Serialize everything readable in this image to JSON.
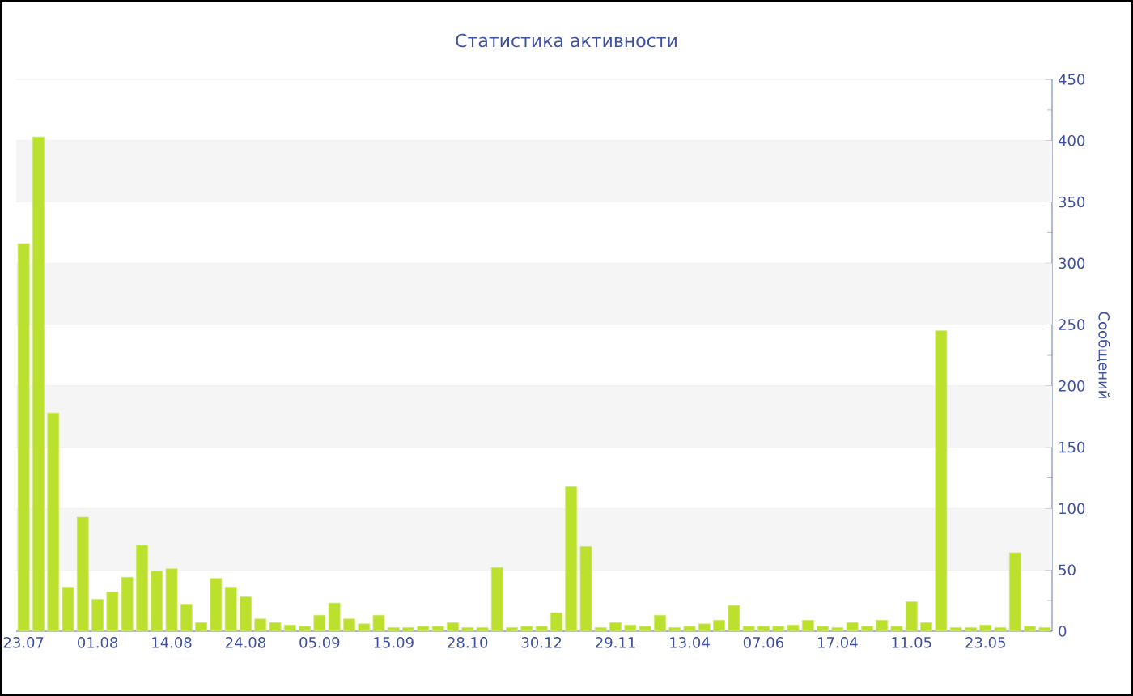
{
  "chart_data": {
    "type": "bar",
    "title": "Статистика активности",
    "ylabel": "Сообщений",
    "categories": [
      "23.07",
      null,
      null,
      null,
      null,
      "01.08",
      null,
      null,
      null,
      null,
      "14.08",
      null,
      null,
      null,
      null,
      "24.08",
      null,
      null,
      null,
      null,
      "05.09",
      null,
      null,
      null,
      null,
      "15.09",
      null,
      null,
      null,
      null,
      "28.10",
      null,
      null,
      null,
      null,
      "30.12",
      null,
      null,
      null,
      null,
      "29.11",
      null,
      null,
      null,
      null,
      "13.04",
      null,
      null,
      null,
      null,
      "07.06",
      null,
      null,
      null,
      null,
      "17.04",
      null,
      null,
      null,
      null,
      "11.05",
      null,
      null,
      null,
      null,
      "23.05",
      null,
      null,
      null,
      null
    ],
    "values": [
      316,
      403,
      178,
      36,
      93,
      26,
      32,
      44,
      70,
      49,
      51,
      22,
      7,
      43,
      36,
      28,
      10,
      7,
      5,
      4,
      13,
      23,
      10,
      6,
      13,
      3,
      3,
      4,
      4,
      7,
      3,
      3,
      52,
      3,
      4,
      4,
      15,
      118,
      69,
      3,
      7,
      5,
      4,
      13,
      3,
      4,
      6,
      9,
      21,
      4,
      4,
      4,
      5,
      9,
      4,
      3,
      7,
      4,
      9,
      4,
      24,
      7,
      245,
      3,
      3,
      5,
      3,
      64,
      4,
      3
    ],
    "color": "#bbe02e",
    "ylim": [
      0,
      450
    ],
    "yticks": [
      0,
      50,
      100,
      150,
      200,
      250,
      300,
      350,
      400,
      450
    ],
    "grid": "y"
  }
}
